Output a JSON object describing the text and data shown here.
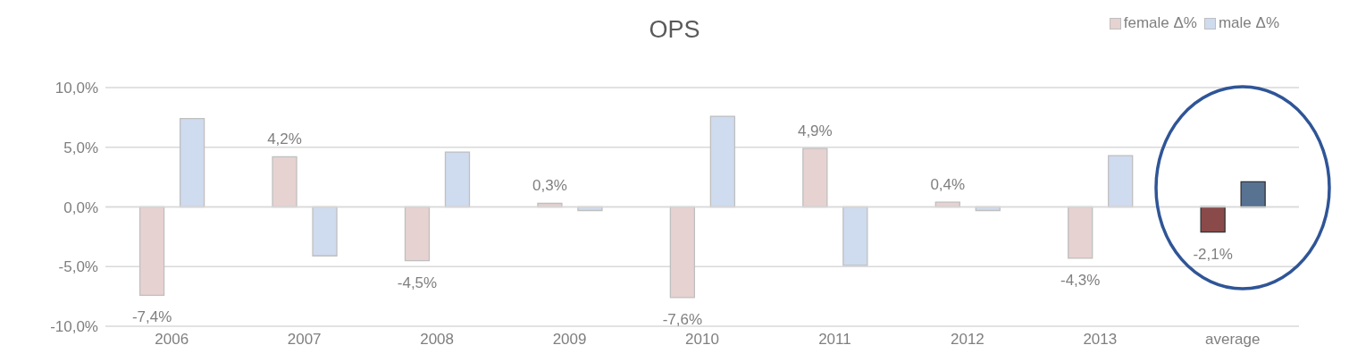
{
  "chart_data": {
    "type": "bar",
    "title": "OPS",
    "categories": [
      "2006",
      "2007",
      "2008",
      "2009",
      "2010",
      "2011",
      "2012",
      "2013",
      "average"
    ],
    "series": [
      {
        "name": "female Δ%",
        "color": "#e6d2d1",
        "colors": [
          "#e6d2d1",
          "#e6d2d1",
          "#e6d2d1",
          "#e6d2d1",
          "#e6d2d1",
          "#e6d2d1",
          "#e6d2d1",
          "#e6d2d1",
          "#8b4a4a"
        ],
        "values": [
          -7.4,
          4.2,
          -4.5,
          0.3,
          -7.6,
          4.9,
          0.4,
          -4.3,
          -2.1
        ],
        "value_labels": [
          "-7,4%",
          "4,2%",
          "-4,5%",
          "0,3%",
          "-7,6%",
          "4,9%",
          "0,4%",
          "-4,3%",
          "-2,1%"
        ]
      },
      {
        "name": "male Δ%",
        "color": "#cfdbee",
        "colors": [
          "#cfdbee",
          "#cfdbee",
          "#cfdbee",
          "#cfdbee",
          "#cfdbee",
          "#cfdbee",
          "#cfdbee",
          "#cfdbee",
          "#587292"
        ],
        "values": [
          7.4,
          -4.1,
          4.6,
          -0.3,
          7.6,
          -4.9,
          -0.3,
          4.3,
          2.1
        ]
      }
    ],
    "ylim": [
      -10,
      10
    ],
    "yticks": [
      {
        "value": -10,
        "label": "-10,0%"
      },
      {
        "value": -5,
        "label": "-5,0%"
      },
      {
        "value": 0,
        "label": "0,0%"
      },
      {
        "value": 5,
        "label": "5,0%"
      },
      {
        "value": 10,
        "label": "10,0%"
      }
    ],
    "grid": "y",
    "legend": "top right"
  }
}
